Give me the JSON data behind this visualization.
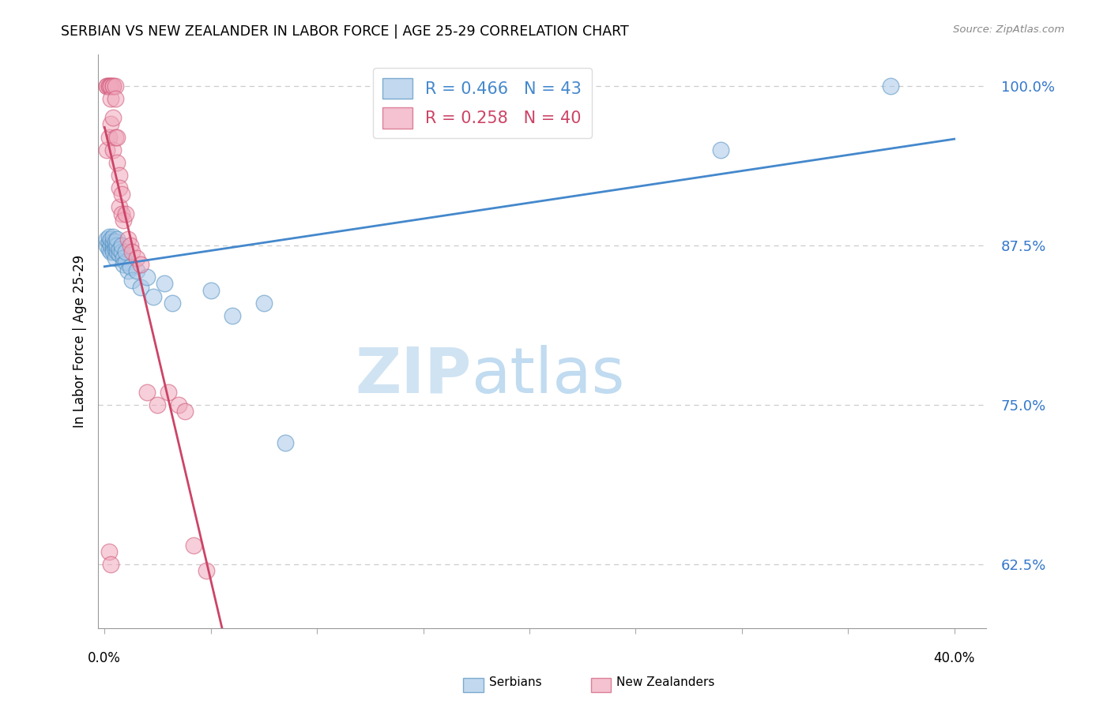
{
  "title": "SERBIAN VS NEW ZEALANDER IN LABOR FORCE | AGE 25-29 CORRELATION CHART",
  "source": "Source: ZipAtlas.com",
  "ylabel": "In Labor Force | Age 25-29",
  "ytick_values": [
    1.0,
    0.875,
    0.75,
    0.625
  ],
  "ymin": 0.575,
  "ymax": 1.025,
  "xmin": -0.003,
  "xmax": 0.415,
  "blue_color": "#a8c8e8",
  "pink_color": "#f0a8bc",
  "blue_edge_color": "#5090c0",
  "pink_edge_color": "#d05878",
  "blue_line_color": "#4488cc",
  "pink_line_color": "#cc4466",
  "watermark_zip": "ZIP",
  "watermark_atlas": "atlas",
  "legend_r_serbian": "R = 0.466",
  "legend_n_serbian": "N = 43",
  "legend_r_nz": "R = 0.258",
  "legend_n_nz": "N = 40",
  "serbian_x": [
    0.001,
    0.001,
    0.002,
    0.002,
    0.002,
    0.003,
    0.003,
    0.003,
    0.004,
    0.004,
    0.004,
    0.004,
    0.004,
    0.005,
    0.005,
    0.005,
    0.005,
    0.006,
    0.006,
    0.006,
    0.007,
    0.007,
    0.008,
    0.008,
    0.009,
    0.009,
    0.01,
    0.01,
    0.011,
    0.012,
    0.013,
    0.015,
    0.017,
    0.02,
    0.023,
    0.028,
    0.032,
    0.05,
    0.06,
    0.075,
    0.085,
    0.29,
    0.37
  ],
  "serbian_y": [
    0.875,
    0.88,
    0.872,
    0.878,
    0.882,
    0.87,
    0.875,
    0.88,
    0.872,
    0.875,
    0.878,
    0.882,
    0.87,
    0.872,
    0.875,
    0.878,
    0.865,
    0.87,
    0.875,
    0.88,
    0.868,
    0.872,
    0.87,
    0.875,
    0.865,
    0.86,
    0.862,
    0.87,
    0.855,
    0.858,
    0.848,
    0.855,
    0.842,
    0.85,
    0.835,
    0.845,
    0.83,
    0.84,
    0.82,
    0.83,
    0.72,
    0.95,
    1.0
  ],
  "nz_x": [
    0.001,
    0.001,
    0.001,
    0.002,
    0.002,
    0.002,
    0.003,
    0.003,
    0.003,
    0.003,
    0.004,
    0.004,
    0.004,
    0.004,
    0.005,
    0.005,
    0.005,
    0.006,
    0.006,
    0.007,
    0.007,
    0.007,
    0.008,
    0.008,
    0.009,
    0.01,
    0.011,
    0.012,
    0.013,
    0.015,
    0.017,
    0.02,
    0.025,
    0.03,
    0.035,
    0.038,
    0.042,
    0.048,
    0.002,
    0.003
  ],
  "nz_y": [
    1.0,
    1.0,
    0.95,
    1.0,
    1.0,
    0.96,
    1.0,
    1.0,
    0.99,
    0.97,
    1.0,
    1.0,
    0.95,
    0.975,
    1.0,
    0.99,
    0.96,
    0.94,
    0.96,
    0.93,
    0.92,
    0.905,
    0.9,
    0.915,
    0.895,
    0.9,
    0.88,
    0.875,
    0.87,
    0.865,
    0.86,
    0.76,
    0.75,
    0.76,
    0.75,
    0.745,
    0.64,
    0.62,
    0.635,
    0.625
  ]
}
